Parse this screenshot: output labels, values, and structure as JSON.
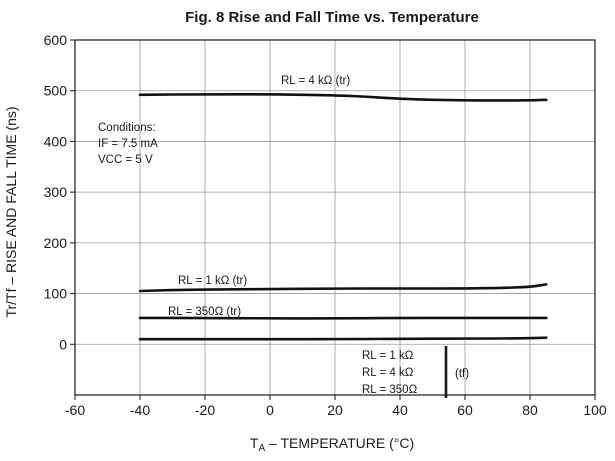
{
  "chart_data": {
    "type": "line",
    "title": "Fig. 8  Rise and Fall Time vs. Temperature",
    "xlabel_main": "T",
    "xlabel_sub": "A",
    "xlabel_rest": " – TEMPERATURE (°C)",
    "ylabel": "Tr/Tf – RISE AND FALL TIME (ns)",
    "xlim": [
      -60,
      100
    ],
    "ylim": [
      -100,
      600
    ],
    "xticks": [
      -60,
      -40,
      -20,
      0,
      20,
      40,
      60,
      80,
      100
    ],
    "yticks": [
      0,
      100,
      200,
      300,
      400,
      500,
      600
    ],
    "grid": true,
    "series": [
      {
        "name": "RL = 4 kΩ (tr)",
        "x": [
          -40,
          -20,
          0,
          20,
          30,
          40,
          50,
          60,
          70,
          80,
          85
        ],
        "y": [
          492,
          493,
          493,
          491,
          488,
          484,
          482,
          481,
          481,
          481,
          482
        ]
      },
      {
        "name": "RL = 1 kΩ (tr)",
        "x": [
          -40,
          -30,
          -20,
          0,
          20,
          40,
          60,
          70,
          80,
          85
        ],
        "y": [
          105,
          107,
          108,
          109,
          110,
          110,
          110,
          111,
          113,
          118
        ]
      },
      {
        "name": "RL = 350Ω  (tr)",
        "x": [
          -40,
          -20,
          0,
          20,
          40,
          60,
          80,
          85
        ],
        "y": [
          52,
          52,
          51,
          51,
          52,
          52,
          52,
          52
        ]
      },
      {
        "name": "RL = 1 kΩ / RL = 4 kΩ / RL = 350Ω (tf)",
        "x": [
          -40,
          -20,
          0,
          20,
          40,
          60,
          80,
          85
        ],
        "y": [
          10,
          10,
          10,
          10,
          11,
          11,
          12,
          13
        ]
      }
    ],
    "annotations": {
      "rl4k_tr": "RL = 4 kΩ (tr)",
      "rl1k_tr": "RL = 1 kΩ (tr)",
      "rl350_tr": "RL = 350Ω  (tr)",
      "tf_line1": "RL = 1 kΩ",
      "tf_line2": "RL = 4 kΩ",
      "tf_line3": "RL = 350Ω",
      "tf_label": "(tf)",
      "cond_title": "Conditions:",
      "cond_if": "IF = 7.5 mA",
      "cond_vcc": "VCC = 5 V"
    }
  }
}
